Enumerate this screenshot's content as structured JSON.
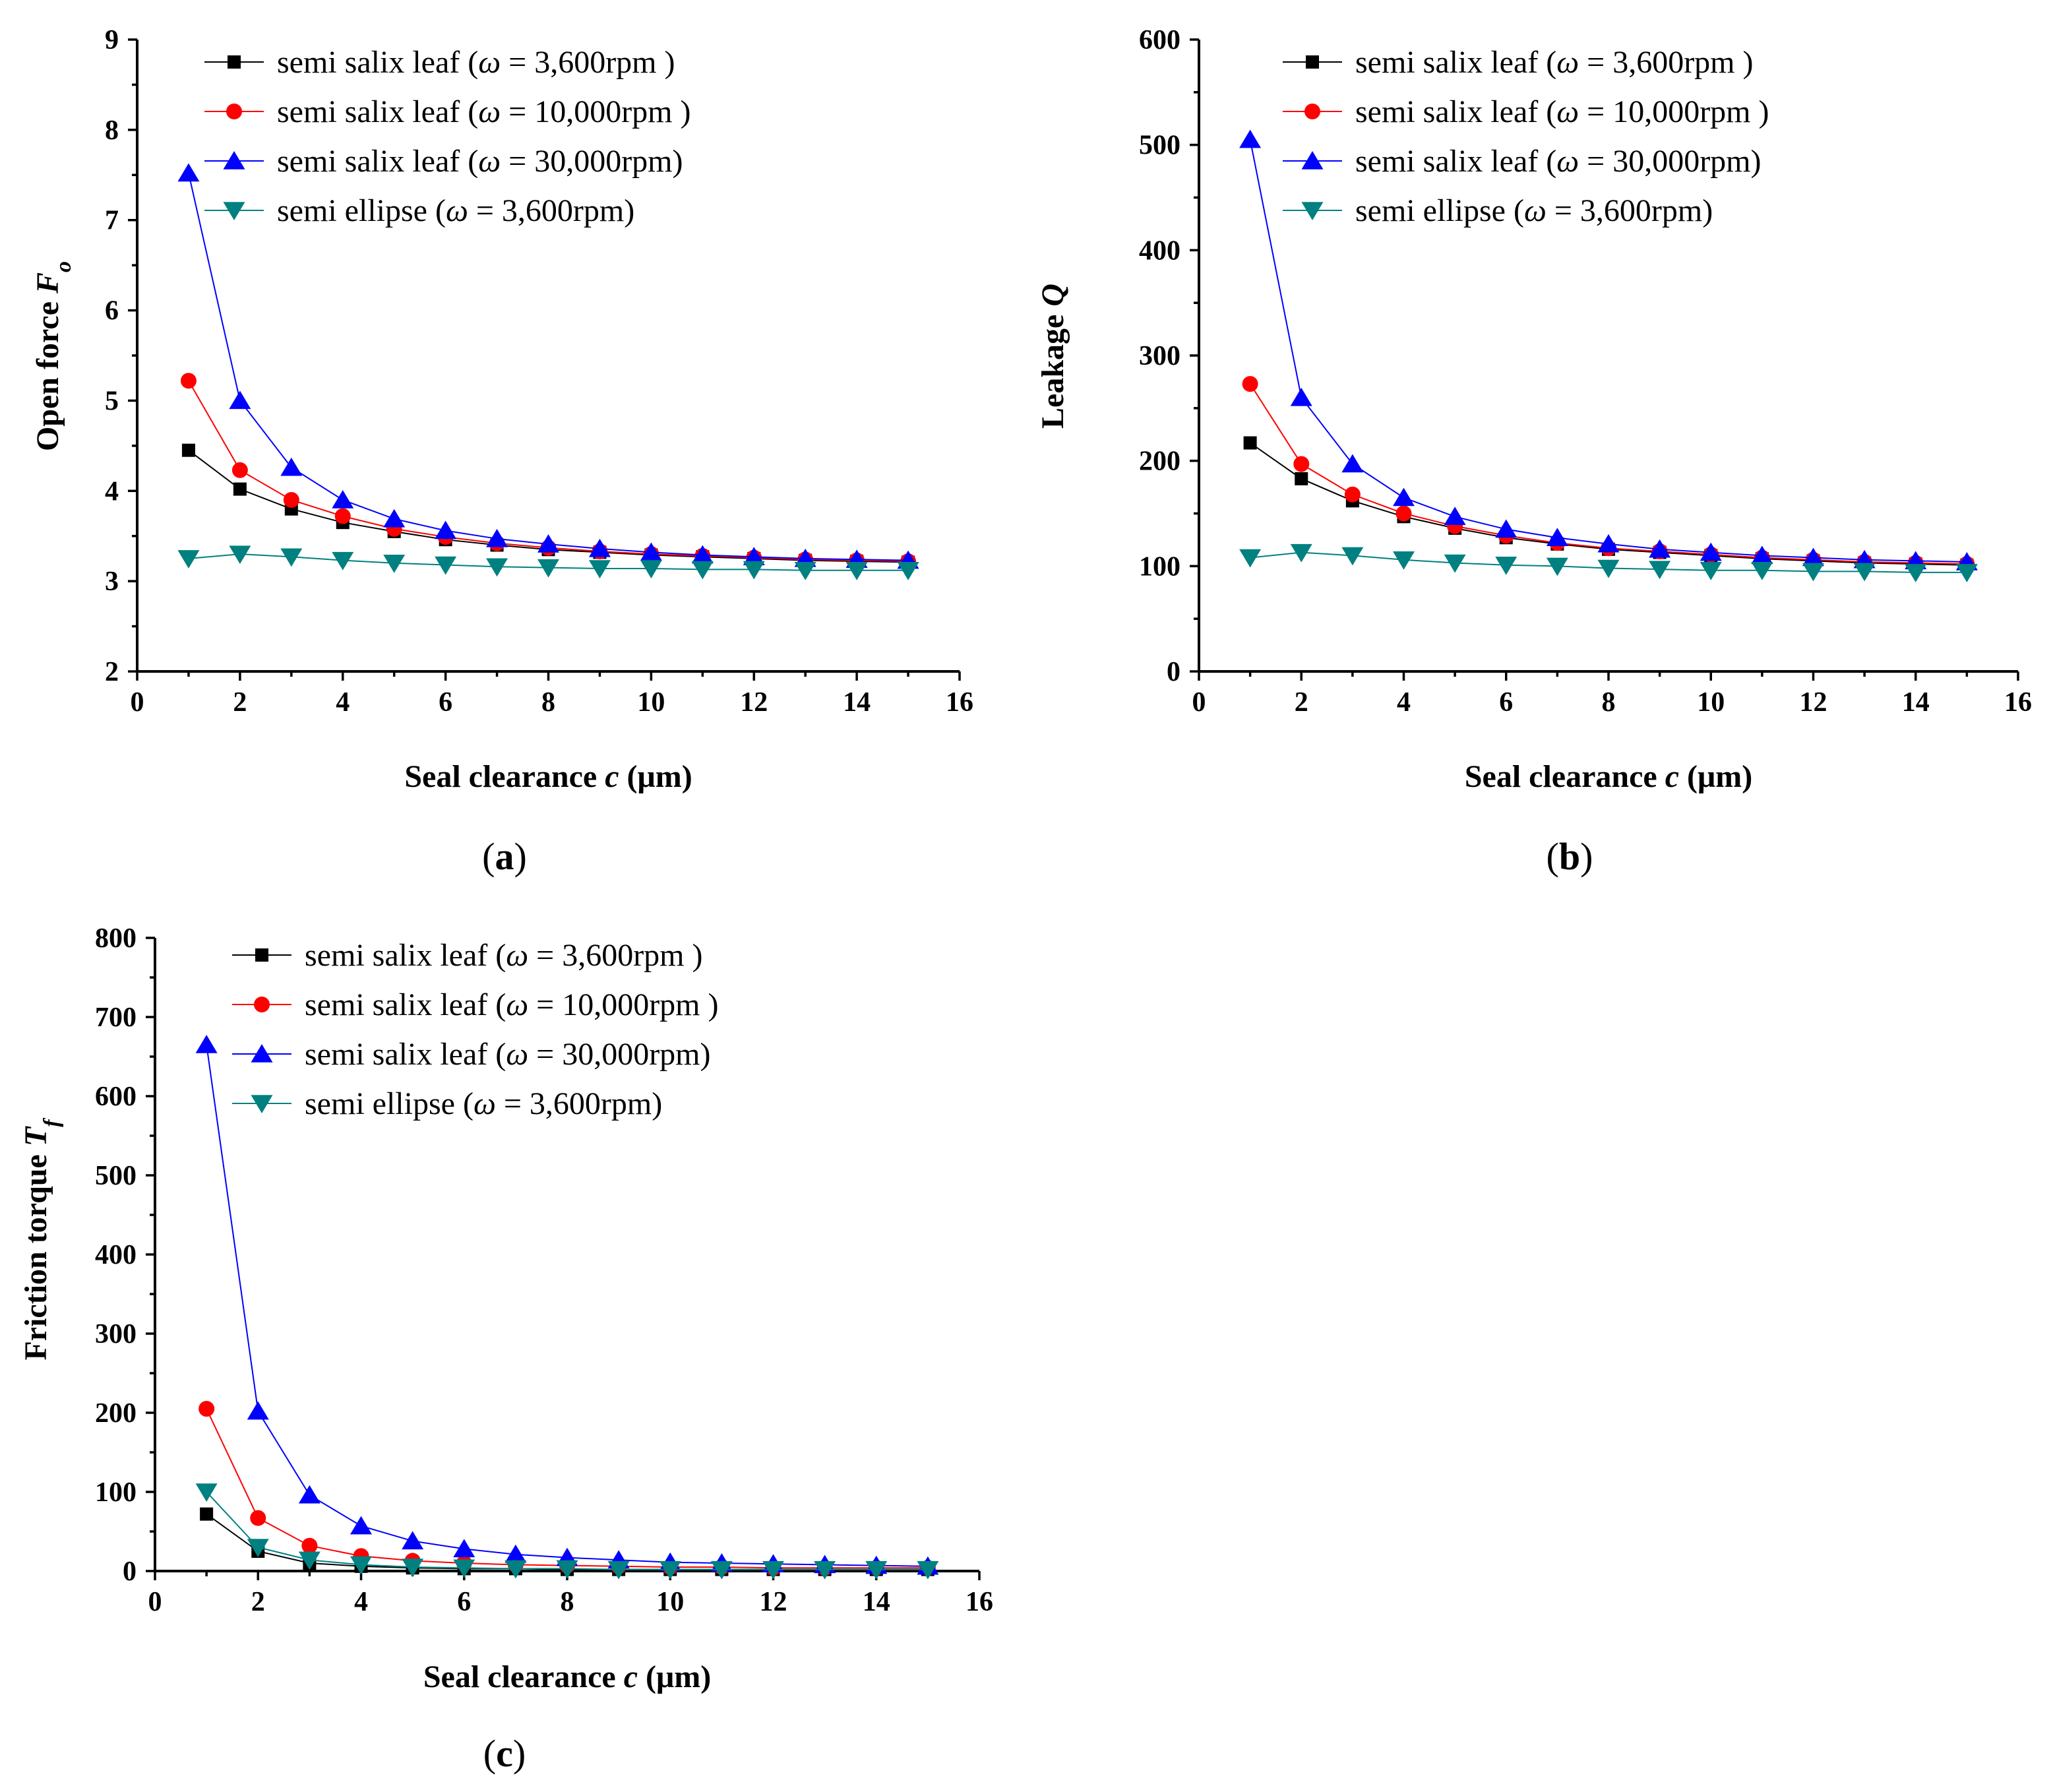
{
  "figure": {
    "x_unit_label": "Seal clearance ",
    "x_unit_var": "c",
    "x_unit_rest": " (μm)"
  },
  "legend_entries": [
    {
      "prefix": "semi salix leaf (",
      "sym": "ω",
      "rest": " = 3,600rpm )",
      "color": "#000000",
      "marker": "square"
    },
    {
      "prefix": "semi salix leaf (",
      "sym": "ω",
      "rest": " = 10,000rpm )",
      "color": "#ff0000",
      "marker": "circle"
    },
    {
      "prefix": "semi salix leaf (",
      "sym": "ω",
      "rest": " = 30,000rpm)",
      "color": "#0000ff",
      "marker": "triangle-up"
    },
    {
      "prefix": "semi ellipse (",
      "sym": "ω",
      "rest": " = 3,600rpm)",
      "color": "#008080",
      "marker": "triangle-down"
    }
  ],
  "chart_data": [
    {
      "panel": "(a)",
      "type": "line",
      "ylabel": "Open force F",
      "ylabel_main": "Open force ",
      "ylabel_var": "F",
      "ylabel_sub": "o",
      "xlabel": "Seal clearance c (μm)",
      "xlim": [
        0,
        16
      ],
      "ylim": [
        2,
        9
      ],
      "xticks": [
        0,
        2,
        4,
        6,
        8,
        10,
        12,
        14,
        16
      ],
      "yticks": [
        2,
        3,
        4,
        5,
        6,
        7,
        8,
        9
      ],
      "x": [
        1,
        2,
        3,
        4,
        5,
        6,
        7,
        8,
        9,
        10,
        11,
        12,
        13,
        14,
        15
      ],
      "series": [
        {
          "name": "semi salix leaf (ω = 3,600rpm )",
          "values": [
            4.45,
            4.02,
            3.8,
            3.65,
            3.55,
            3.46,
            3.4,
            3.35,
            3.32,
            3.29,
            3.27,
            3.25,
            3.23,
            3.22,
            3.21
          ]
        },
        {
          "name": "semi salix leaf (ω = 10,000rpm )",
          "values": [
            5.22,
            4.23,
            3.9,
            3.72,
            3.58,
            3.49,
            3.42,
            3.37,
            3.33,
            3.3,
            3.28,
            3.26,
            3.24,
            3.23,
            3.22
          ]
        },
        {
          "name": "semi salix leaf (ω = 30,000rpm)",
          "values": [
            7.52,
            5.0,
            4.26,
            3.9,
            3.69,
            3.56,
            3.47,
            3.41,
            3.36,
            3.32,
            3.29,
            3.27,
            3.25,
            3.24,
            3.23
          ]
        },
        {
          "name": "semi ellipse (ω = 3,600rpm)",
          "values": [
            3.25,
            3.3,
            3.27,
            3.23,
            3.2,
            3.18,
            3.16,
            3.15,
            3.14,
            3.14,
            3.13,
            3.13,
            3.12,
            3.12,
            3.12
          ]
        }
      ]
    },
    {
      "panel": "(b)",
      "type": "line",
      "ylabel": "Leakage Q",
      "ylabel_main": "Leakage ",
      "ylabel_var": "Q",
      "ylabel_sub": "",
      "xlabel": "Seal clearance c (μm)",
      "xlim": [
        0,
        16
      ],
      "ylim": [
        0,
        600
      ],
      "xticks": [
        0,
        2,
        4,
        6,
        8,
        10,
        12,
        14,
        16
      ],
      "yticks": [
        0,
        100,
        200,
        300,
        400,
        500,
        600
      ],
      "x": [
        1,
        2,
        3,
        4,
        5,
        6,
        7,
        8,
        9,
        10,
        11,
        12,
        13,
        14,
        15
      ],
      "series": [
        {
          "name": "semi salix leaf (ω = 3,600rpm )",
          "values": [
            217,
            183,
            162,
            147,
            136,
            127,
            121,
            116,
            113,
            110,
            107,
            105,
            103,
            102,
            101
          ]
        },
        {
          "name": "semi salix leaf (ω = 10,000rpm )",
          "values": [
            273,
            197,
            168,
            150,
            138,
            129,
            122,
            117,
            114,
            111,
            108,
            106,
            104,
            103,
            102
          ]
        },
        {
          "name": "semi salix leaf (ω = 30,000rpm)",
          "values": [
            505,
            260,
            197,
            165,
            147,
            135,
            127,
            121,
            116,
            113,
            110,
            108,
            106,
            105,
            104
          ]
        },
        {
          "name": "semi ellipse (ω = 3,600rpm)",
          "values": [
            108,
            113,
            110,
            106,
            103,
            101,
            100,
            98,
            97,
            96,
            96,
            95,
            95,
            94,
            94
          ]
        }
      ]
    },
    {
      "panel": "(c)",
      "type": "line",
      "ylabel": "Friction torque T",
      "ylabel_main": "Friction torque ",
      "ylabel_var": "T",
      "ylabel_sub": "f",
      "xlabel": "Seal clearance c (μm)",
      "xlim": [
        0,
        16
      ],
      "ylim": [
        0,
        800
      ],
      "xticks": [
        0,
        2,
        4,
        6,
        8,
        10,
        12,
        14,
        16
      ],
      "yticks": [
        0,
        100,
        200,
        300,
        400,
        500,
        600,
        700,
        800
      ],
      "x": [
        1,
        2,
        3,
        4,
        5,
        6,
        7,
        8,
        9,
        10,
        11,
        12,
        13,
        14,
        15
      ],
      "series": [
        {
          "name": "semi salix leaf (ω = 3,600rpm )",
          "values": [
            72,
            25,
            10,
            6,
            4,
            3,
            3,
            2,
            2,
            2,
            2,
            2,
            2,
            2,
            2
          ]
        },
        {
          "name": "semi salix leaf (ω = 10,000rpm )",
          "values": [
            205,
            67,
            32,
            19,
            13,
            10,
            8,
            7,
            6,
            5,
            5,
            4,
            4,
            4,
            4
          ]
        },
        {
          "name": "semi salix leaf (ω = 30,000rpm)",
          "values": [
            665,
            202,
            96,
            57,
            38,
            28,
            21,
            17,
            14,
            11,
            10,
            9,
            8,
            7,
            6
          ]
        },
        {
          "name": "semi ellipse (ω = 3,600rpm)",
          "values": [
            100,
            30,
            14,
            8,
            5,
            4,
            3,
            3,
            2,
            2,
            2,
            2,
            2,
            2,
            2
          ]
        }
      ]
    }
  ]
}
